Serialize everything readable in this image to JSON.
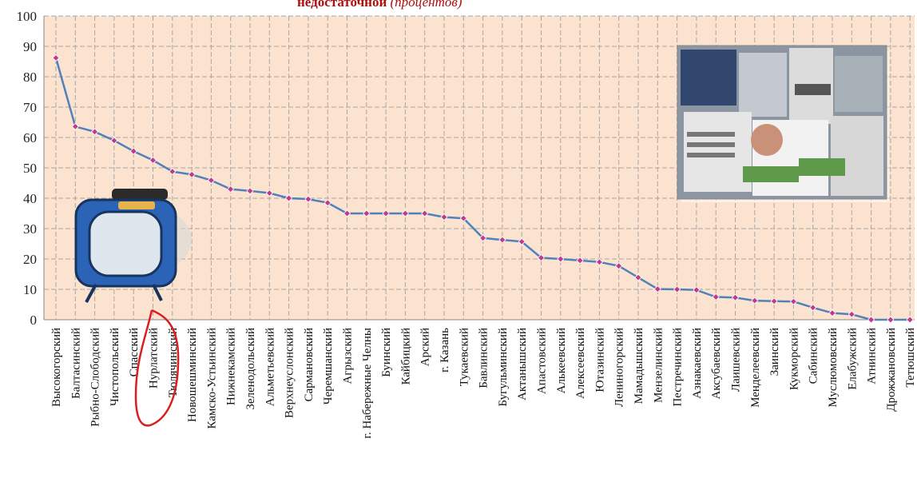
{
  "chart_data": {
    "type": "line",
    "title": "недостаточной",
    "title_suffix": "(процентов)",
    "ylim": [
      0,
      100
    ],
    "yticks": [
      0,
      10,
      20,
      30,
      40,
      50,
      60,
      70,
      80,
      90,
      100
    ],
    "grid": true,
    "categories": [
      "Высокогорский",
      "Балтасинский",
      "Рыбно-Слободский",
      "Чистопольский",
      "Спасский",
      "Нурлатский",
      "Тюлячинский",
      "Новошешминский",
      "Камско-Устьинский",
      "Нижнекамский",
      "Зеленодольский",
      "Альметьевский",
      "Верхнеуслонский",
      "Сармановский",
      "Черемшанский",
      "Агрызский",
      "г. Набережные Челны",
      "Буинский",
      "Кайбицкий",
      "Арский",
      "г. Казань",
      "Тукаевский",
      "Бавлинский",
      "Бугульминский",
      "Актанышский",
      "Апастовский",
      "Алькеевский",
      "Алексеевский",
      "Ютазинский",
      "Лениногорский",
      "Мамадышский",
      "Мензелинский",
      "Пестречинский",
      "Азнакаевский",
      "Аксубаевский",
      "Лаишевский",
      "Менделеевский",
      "Заинский",
      "Кукморский",
      "Сабинский",
      "Муслюмовский",
      "Елабужский",
      "Атнинский",
      "Дрожжановский",
      "Тетюшский"
    ],
    "values": [
      86.2,
      63.6,
      61.9,
      59.0,
      55.5,
      52.5,
      48.8,
      47.8,
      45.9,
      43.0,
      42.4,
      41.7,
      40.0,
      39.7,
      38.5,
      35.0,
      35.0,
      35.0,
      35.0,
      35.0,
      33.8,
      33.4,
      26.9,
      26.3,
      25.7,
      20.4,
      20.0,
      19.5,
      19.0,
      17.7,
      13.9,
      10.1,
      10.0,
      9.8,
      7.5,
      7.3,
      6.3,
      6.1,
      6.0,
      4.0,
      2.2,
      1.8,
      0.0,
      0.0,
      0.0
    ],
    "colors": {
      "line": "#4f81bd",
      "marker": "#c23b8a",
      "plot_bg": "#fbe3cf",
      "grid": "#a7a7a7",
      "annotation": "#d92020"
    }
  }
}
